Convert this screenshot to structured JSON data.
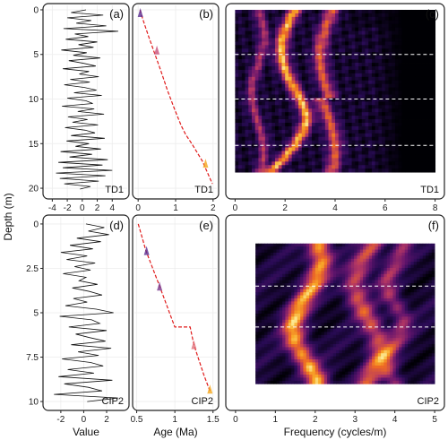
{
  "axis_labels": {
    "y": "Depth (m)",
    "x_value": "Value",
    "x_age": "Age (Ma)",
    "x_freq": "Frequency (cycles/m)"
  },
  "chart_data": [
    {
      "panel": "(a)",
      "site": "TD1",
      "type": "line",
      "xlabel": "",
      "ylabel": "Depth (m)",
      "xlim": [
        -5,
        6
      ],
      "ylim": [
        -0.5,
        21
      ],
      "y_reversed": true,
      "xticks": [
        -4,
        -2,
        0,
        2,
        4
      ],
      "yticks": [
        0,
        5,
        10,
        15,
        20
      ],
      "depth": [
        0,
        0.3,
        0.6,
        0.9,
        1.2,
        1.5,
        1.8,
        2.1,
        2.4,
        2.7,
        3.0,
        3.3,
        3.6,
        3.9,
        4.2,
        4.5,
        4.8,
        5.1,
        5.4,
        5.7,
        6.0,
        6.3,
        6.6,
        6.9,
        7.2,
        7.5,
        7.8,
        8.1,
        8.4,
        8.7,
        9.0,
        9.3,
        9.6,
        9.9,
        10.2,
        10.5,
        10.8,
        11.1,
        11.4,
        11.7,
        12.0,
        12.3,
        12.6,
        12.9,
        13.2,
        13.5,
        13.8,
        14.1,
        14.4,
        14.7,
        15.0,
        15.3,
        15.6,
        15.9,
        16.2,
        16.5,
        16.8,
        17.1,
        17.4,
        17.7,
        18.0,
        18.3,
        18.6,
        18.9,
        19.2,
        19.5,
        19.8,
        20.1
      ],
      "values": [
        0.5,
        -1.5,
        2.8,
        -2.0,
        1.2,
        -0.8,
        3.2,
        -2.5,
        4.8,
        -1.0,
        0.8,
        -2.2,
        2.0,
        -0.5,
        1.5,
        -2.8,
        0.6,
        -1.2,
        2.4,
        -1.8,
        0.2,
        1.8,
        -2.6,
        0.9,
        -0.4,
        2.2,
        -1.6,
        1.0,
        -2.4,
        0.3,
        1.9,
        -1.1,
        2.6,
        -2.0,
        0.5,
        1.4,
        -2.7,
        1.6,
        -0.6,
        2.9,
        -1.9,
        0.7,
        -1.3,
        2.1,
        -2.3,
        0.4,
        1.7,
        -1.5,
        3.0,
        -2.1,
        0.9,
        -0.9,
        2.5,
        -2.9,
        1.3,
        -1.7,
        3.4,
        -3.2,
        2.7,
        -2.6,
        4.0,
        -3.5,
        3.1,
        -3.0,
        2.2,
        -2.4,
        1.1,
        -0.3
      ]
    },
    {
      "panel": "(b)",
      "site": "TD1",
      "type": "line",
      "xlabel": "",
      "xlim": [
        -0.1,
        2.1
      ],
      "ylim": [
        -0.5,
        21
      ],
      "y_reversed": true,
      "xticks": [
        0.0,
        1.0,
        2.0
      ],
      "age_model": {
        "depth": [
          0,
          1,
          3,
          5,
          7,
          9,
          11,
          13,
          14,
          15,
          17,
          19.5
        ],
        "age": [
          0.05,
          0.12,
          0.28,
          0.45,
          0.62,
          0.78,
          0.96,
          1.15,
          1.27,
          1.43,
          1.72,
          1.98
        ]
      },
      "tie_points": [
        {
          "depth": 0.3,
          "age": 0.06,
          "color": "#5a2d91"
        },
        {
          "depth": 4.5,
          "age": 0.5,
          "color": "#c8507a"
        },
        {
          "depth": 17.2,
          "age": 1.8,
          "color": "#f4a81d"
        }
      ]
    },
    {
      "panel": "(c)",
      "site": "TD1",
      "type": "heatmap",
      "xlabel": "",
      "xlim": [
        -0.3,
        8.3
      ],
      "ylim": [
        -0.5,
        21
      ],
      "y_reversed": true,
      "xticks": [
        0,
        2,
        4,
        6,
        8
      ],
      "data_range": {
        "freq": [
          0,
          8
        ],
        "depth": [
          0,
          18.2
        ]
      },
      "dashed_lines_depth": [
        5,
        10,
        15.2
      ]
    },
    {
      "panel": "(d)",
      "site": "CIP2",
      "type": "line",
      "xlabel": "Value",
      "ylabel": "Depth (m)",
      "xlim": [
        -3.4,
        3.8
      ],
      "ylim": [
        -0.4,
        10.4
      ],
      "y_reversed": true,
      "xticks": [
        -2,
        0,
        2
      ],
      "yticks": [
        0.0,
        2.5,
        5.0,
        7.5,
        10.0
      ],
      "depth": [
        0,
        0.2,
        0.4,
        0.6,
        0.8,
        1.0,
        1.2,
        1.4,
        1.6,
        1.8,
        2.0,
        2.2,
        2.4,
        2.6,
        2.8,
        3.0,
        3.2,
        3.4,
        3.6,
        3.8,
        4.0,
        4.2,
        4.4,
        4.6,
        4.8,
        5.0,
        5.2,
        5.4,
        5.6,
        5.8,
        6.0,
        6.2,
        6.4,
        6.6,
        6.8,
        7.0,
        7.2,
        7.4,
        7.6,
        7.8,
        8.0,
        8.2,
        8.4,
        8.6,
        8.8,
        9.0,
        9.2,
        9.4,
        9.6,
        9.8,
        10.0
      ],
      "values": [
        0.2,
        1.8,
        0.4,
        2.2,
        -0.6,
        1.5,
        -1.2,
        0.8,
        -2.0,
        0.3,
        -1.5,
        1.0,
        -0.8,
        0.6,
        -1.8,
        0.2,
        -0.4,
        1.2,
        -1.0,
        0.5,
        1.6,
        -0.9,
        0.3,
        -1.6,
        1.1,
        2.6,
        -2.1,
        0.7,
        1.4,
        -1.3,
        2.0,
        -0.7,
        0.5,
        1.9,
        -1.1,
        2.4,
        -0.5,
        1.3,
        -1.9,
        0.6,
        1.7,
        -1.4,
        0.9,
        -2.2,
        2.5,
        -1.7,
        0.4,
        1.6,
        -2.6,
        3.0,
        0.3
      ]
    },
    {
      "panel": "(e)",
      "site": "CIP2",
      "type": "line",
      "xlabel": "Age (Ma)",
      "xlim": [
        0.47,
        1.55
      ],
      "ylim": [
        -0.4,
        10.4
      ],
      "y_reversed": true,
      "xticks": [
        0.5,
        1.0,
        1.5
      ],
      "age_model": {
        "depth": [
          0,
          1.5,
          3.5,
          5.8,
          5.8,
          6.8,
          8.5,
          9.4
        ],
        "age": [
          0.52,
          0.62,
          0.8,
          1.0,
          1.2,
          1.25,
          1.38,
          1.46
        ]
      },
      "tie_points": [
        {
          "depth": 1.5,
          "age": 0.63,
          "color": "#5a2d91"
        },
        {
          "depth": 3.5,
          "age": 0.8,
          "color": "#7b3a8f"
        },
        {
          "depth": 6.8,
          "age": 1.25,
          "color": "#e0707a"
        },
        {
          "depth": 9.3,
          "age": 1.46,
          "color": "#f4a81d"
        }
      ]
    },
    {
      "panel": "(f)",
      "site": "CIP2",
      "type": "heatmap",
      "xlabel": "Frequency (cycles/m)",
      "xlim": [
        -0.2,
        5.2
      ],
      "ylim": [
        -0.4,
        10.4
      ],
      "y_reversed": true,
      "xticks": [
        0,
        1,
        2,
        3,
        4,
        5
      ],
      "data_range": {
        "freq": [
          0.5,
          5
        ],
        "depth": [
          1.1,
          9.0
        ]
      },
      "dashed_lines_depth": [
        3.5,
        5.8
      ]
    }
  ]
}
